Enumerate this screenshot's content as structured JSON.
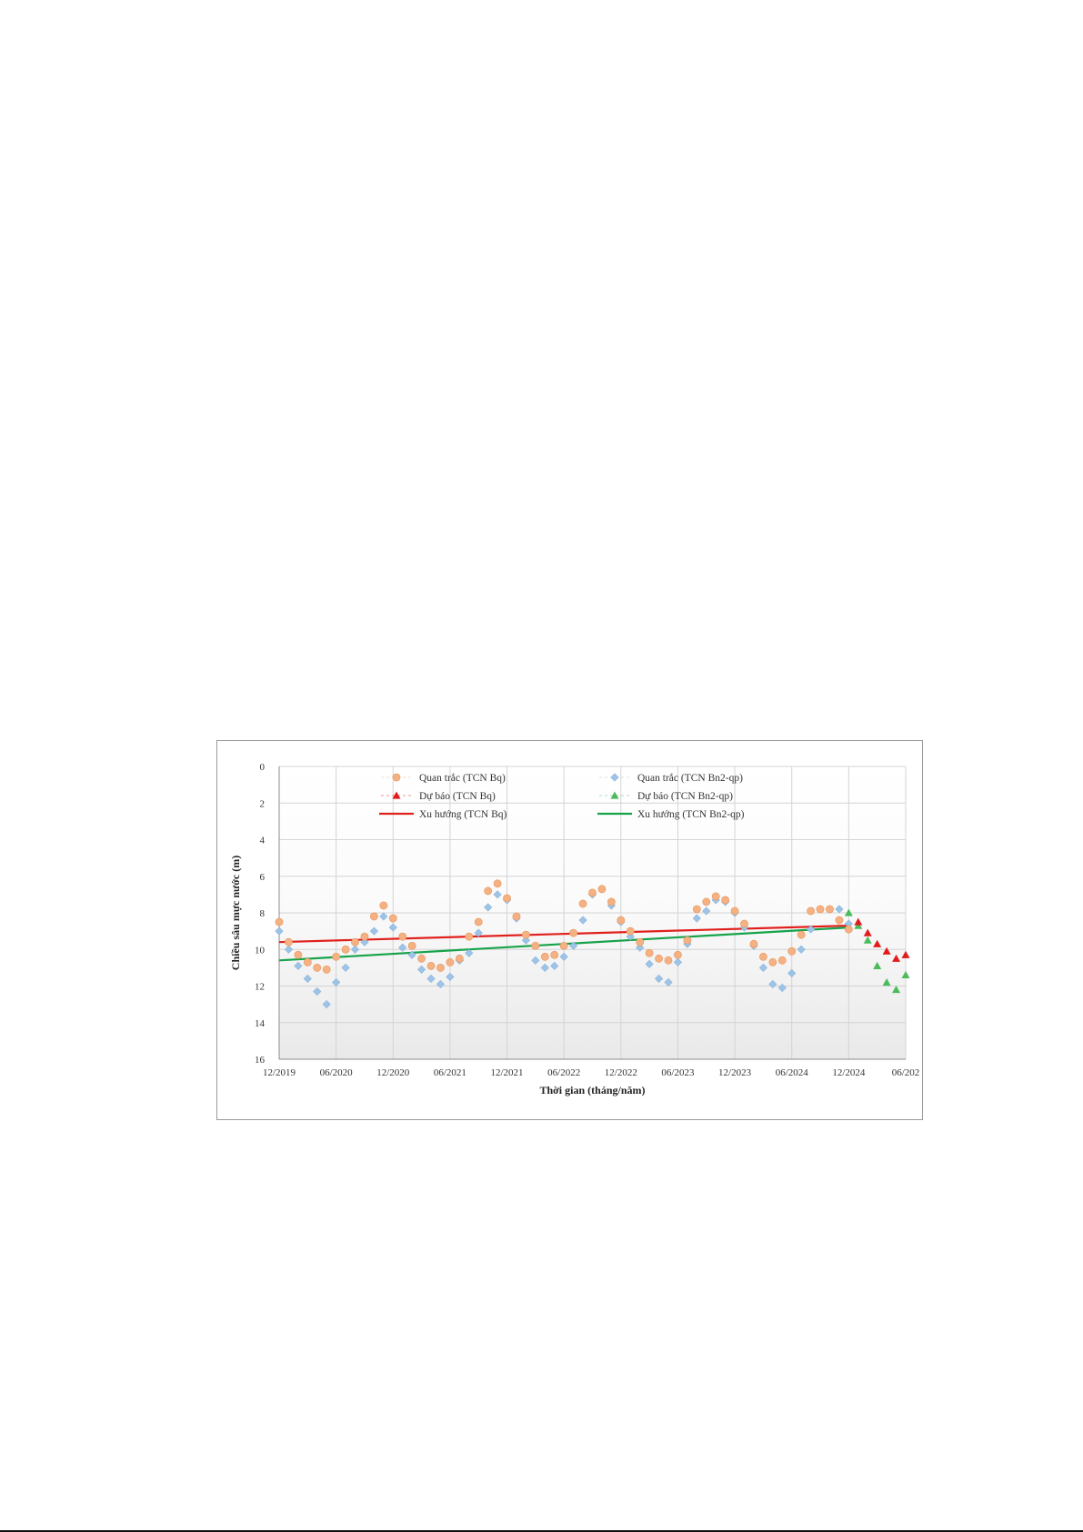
{
  "chart_data": {
    "type": "scatter",
    "title": "",
    "xlabel": "Thời gian (tháng/năm)",
    "ylabel": "Chiều sâu mực nước (m)",
    "ylim": [
      0,
      16
    ],
    "y_inverted": true,
    "y_ticks": [
      "0",
      "2",
      "4",
      "6",
      "8",
      "10",
      "12",
      "14",
      "16"
    ],
    "xlim": [
      "2019-12",
      "2025-06"
    ],
    "x_ticks": [
      "12/2019",
      "06/2020",
      "12/2020",
      "06/2021",
      "12/2021",
      "06/2022",
      "12/2022",
      "06/2023",
      "12/2023",
      "06/2024",
      "12/2024",
      "06/202"
    ],
    "grid": true,
    "legend_position": "top",
    "series": [
      {
        "name": "Quan trắc (TCN Bq)",
        "kind": "observed",
        "color": "#f4b183",
        "marker": "circle",
        "x": [
          "2019-12",
          "2020-01",
          "2020-02",
          "2020-03",
          "2020-04",
          "2020-05",
          "2020-06",
          "2020-07",
          "2020-08",
          "2020-09",
          "2020-10",
          "2020-11",
          "2020-12",
          "2021-01",
          "2021-02",
          "2021-03",
          "2021-04",
          "2021-05",
          "2021-06",
          "2021-07",
          "2021-08",
          "2021-09",
          "2021-10",
          "2021-11",
          "2021-12",
          "2022-01",
          "2022-02",
          "2022-03",
          "2022-04",
          "2022-05",
          "2022-06",
          "2022-07",
          "2022-08",
          "2022-09",
          "2022-10",
          "2022-11",
          "2022-12",
          "2023-01",
          "2023-02",
          "2023-03",
          "2023-04",
          "2023-05",
          "2023-06",
          "2023-07",
          "2023-08",
          "2023-09",
          "2023-10",
          "2023-11",
          "2023-12",
          "2024-01",
          "2024-02",
          "2024-03",
          "2024-04",
          "2024-05",
          "2024-06",
          "2024-07",
          "2024-08",
          "2024-09",
          "2024-10",
          "2024-11",
          "2024-12"
        ],
        "y": [
          8.5,
          9.6,
          10.3,
          10.7,
          11.0,
          11.1,
          10.4,
          10.0,
          9.6,
          9.3,
          8.2,
          7.6,
          8.3,
          9.3,
          9.8,
          10.5,
          10.9,
          11.0,
          10.7,
          10.5,
          9.3,
          8.5,
          6.8,
          6.4,
          7.2,
          8.2,
          9.2,
          9.8,
          10.4,
          10.3,
          9.8,
          9.1,
          7.5,
          6.9,
          6.7,
          7.4,
          8.4,
          9.0,
          9.6,
          10.2,
          10.5,
          10.6,
          10.3,
          9.5,
          7.8,
          7.4,
          7.1,
          7.3,
          7.9,
          8.6,
          9.7,
          10.4,
          10.7,
          10.6,
          10.1,
          9.2,
          7.9,
          7.8,
          7.8,
          8.4,
          8.9
        ]
      },
      {
        "name": "Quan trắc (TCN Bn2-qp)",
        "kind": "observed",
        "color": "#9dc3e6",
        "marker": "diamond",
        "x": [
          "2019-12",
          "2020-01",
          "2020-02",
          "2020-03",
          "2020-04",
          "2020-05",
          "2020-06",
          "2020-07",
          "2020-08",
          "2020-09",
          "2020-10",
          "2020-11",
          "2020-12",
          "2021-01",
          "2021-02",
          "2021-03",
          "2021-04",
          "2021-05",
          "2021-06",
          "2021-07",
          "2021-08",
          "2021-09",
          "2021-10",
          "2021-11",
          "2021-12",
          "2022-01",
          "2022-02",
          "2022-03",
          "2022-04",
          "2022-05",
          "2022-06",
          "2022-07",
          "2022-08",
          "2022-09",
          "2022-10",
          "2022-11",
          "2022-12",
          "2023-01",
          "2023-02",
          "2023-03",
          "2023-04",
          "2023-05",
          "2023-06",
          "2023-07",
          "2023-08",
          "2023-09",
          "2023-10",
          "2023-11",
          "2023-12",
          "2024-01",
          "2024-02",
          "2024-03",
          "2024-04",
          "2024-05",
          "2024-06",
          "2024-07",
          "2024-08",
          "2024-09",
          "2024-10",
          "2024-11",
          "2024-12"
        ],
        "y": [
          9.0,
          10.0,
          10.9,
          11.6,
          12.3,
          13.0,
          11.8,
          11.0,
          10.0,
          9.6,
          9.0,
          8.2,
          8.8,
          9.9,
          10.3,
          11.1,
          11.6,
          11.9,
          11.5,
          10.6,
          10.2,
          9.1,
          7.7,
          7.0,
          7.3,
          8.3,
          9.5,
          10.6,
          11.0,
          10.9,
          10.4,
          9.8,
          8.4,
          7.0,
          6.7,
          7.6,
          8.5,
          9.3,
          9.9,
          10.8,
          11.6,
          11.8,
          10.7,
          9.7,
          8.3,
          7.9,
          7.3,
          7.4,
          8.0,
          8.8,
          9.8,
          11.0,
          11.9,
          12.1,
          11.3,
          10.0,
          8.9,
          7.8,
          7.8,
          7.8,
          8.6
        ]
      },
      {
        "name": "Dự báo (TCN Bq)",
        "kind": "forecast",
        "color": "#e31a1c",
        "marker": "triangle",
        "x": [
          "2025-01",
          "2025-02",
          "2025-03",
          "2025-04",
          "2025-05",
          "2025-06"
        ],
        "y": [
          8.5,
          9.1,
          9.7,
          10.1,
          10.5,
          10.3
        ]
      },
      {
        "name": "Dự báo (TCN Bn2-qp)",
        "kind": "forecast",
        "color": "#4cbb5c",
        "marker": "triangle",
        "x": [
          "2024-12",
          "2025-01",
          "2025-02",
          "2025-03",
          "2025-04",
          "2025-05",
          "2025-06"
        ],
        "y": [
          8.0,
          8.7,
          9.5,
          10.9,
          11.8,
          12.2,
          11.4
        ]
      },
      {
        "name": "Xu hướng (TCN Bq)",
        "kind": "trend",
        "color": "#e0201c",
        "x": [
          "2019-12",
          "2024-12"
        ],
        "y": [
          9.6,
          8.7
        ]
      },
      {
        "name": "Xu hướng (TCN Bn2-qp)",
        "kind": "trend",
        "color": "#16a34a",
        "x": [
          "2019-12",
          "2024-12"
        ],
        "y": [
          10.6,
          8.8
        ]
      }
    ]
  }
}
